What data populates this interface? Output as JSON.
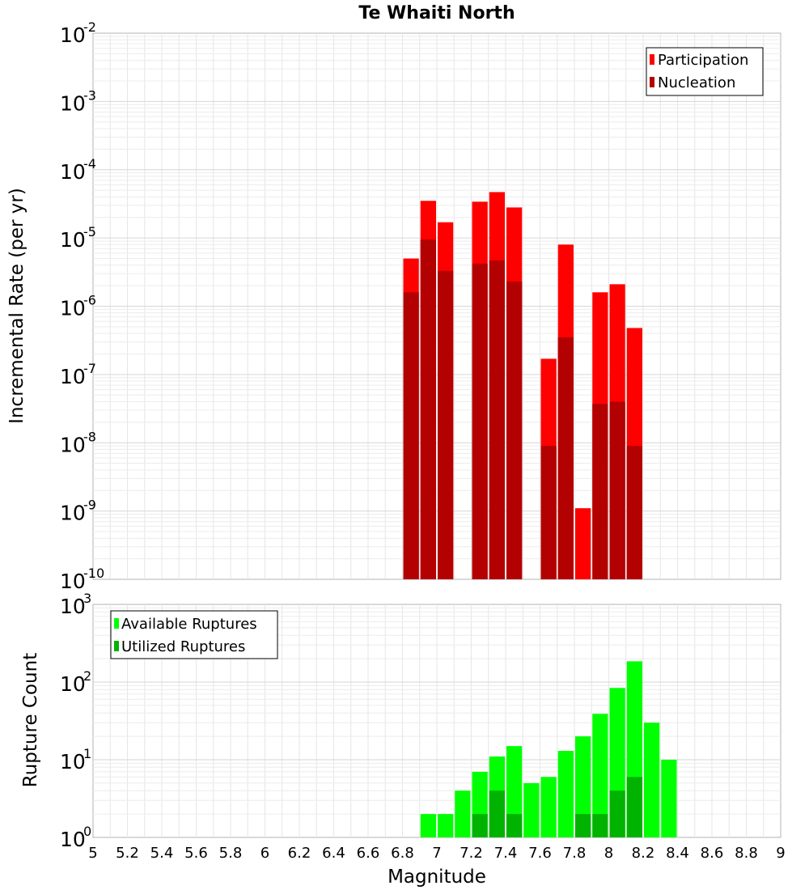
{
  "chart_data": [
    {
      "type": "bar",
      "title": "Te Whaiti North",
      "ylabel": "Incremental Rate (per yr)",
      "xlabel": "",
      "log_y": true,
      "grid": true,
      "legend_position": "top-right",
      "xlim": [
        5,
        9
      ],
      "ylim": [
        1e-10,
        0.01
      ],
      "bin_width": 0.1,
      "y_ticks": [
        {
          "base": "10",
          "exp": "-10"
        },
        {
          "base": "10",
          "exp": "-9"
        },
        {
          "base": "10",
          "exp": "-8"
        },
        {
          "base": "10",
          "exp": "-7"
        },
        {
          "base": "10",
          "exp": "-6"
        },
        {
          "base": "10",
          "exp": "-5"
        },
        {
          "base": "10",
          "exp": "-4"
        },
        {
          "base": "10",
          "exp": "-3"
        },
        {
          "base": "10",
          "exp": "-2"
        }
      ],
      "series": [
        {
          "name": "Participation",
          "color": "#ff0000",
          "x": [
            6.85,
            6.95,
            7.05,
            7.25,
            7.35,
            7.45,
            7.65,
            7.75,
            7.85,
            7.95,
            8.05,
            8.15
          ],
          "values": [
            5e-06,
            3.5e-05,
            1.7e-05,
            3.4e-05,
            4.7e-05,
            2.8e-05,
            1.7e-07,
            8e-06,
            1.1e-09,
            1.6e-06,
            2.1e-06,
            4.8e-07
          ]
        },
        {
          "name": "Nucleation",
          "color": "#b30000",
          "x": [
            6.85,
            6.95,
            7.05,
            7.25,
            7.35,
            7.45,
            7.65,
            7.75,
            7.95,
            8.05,
            8.15
          ],
          "values": [
            1.6e-06,
            9.5e-06,
            3.3e-06,
            4.2e-06,
            4.7e-06,
            2.3e-06,
            9e-09,
            3.5e-07,
            3.7e-08,
            4e-08,
            9e-09
          ]
        }
      ]
    },
    {
      "type": "bar",
      "title": "",
      "ylabel": "Rupture Count",
      "xlabel": "Magnitude",
      "log_y": true,
      "grid": true,
      "legend_position": "top-left",
      "xlim": [
        5,
        9
      ],
      "ylim": [
        0.8,
        1000
      ],
      "bin_width": 0.1,
      "x_ticks": [
        "5",
        "5.2",
        "5.4",
        "5.6",
        "5.8",
        "6",
        "6.2",
        "6.4",
        "6.6",
        "6.8",
        "7",
        "7.2",
        "7.4",
        "7.6",
        "7.8",
        "8",
        "8.2",
        "8.4",
        "8.6",
        "8.8",
        "9"
      ],
      "y_ticks": [
        {
          "base": "10",
          "exp": "0"
        },
        {
          "base": "10",
          "exp": "1"
        },
        {
          "base": "10",
          "exp": "2"
        },
        {
          "base": "10",
          "exp": "3"
        }
      ],
      "series": [
        {
          "name": "Available Ruptures",
          "color": "#00ff00",
          "x": [
            6.35,
            6.75,
            6.85,
            6.95,
            7.05,
            7.15,
            7.25,
            7.35,
            7.45,
            7.55,
            7.65,
            7.75,
            7.85,
            7.95,
            8.05,
            8.15,
            8.25,
            8.35
          ],
          "values": [
            1,
            1,
            1,
            2,
            2,
            4,
            7,
            11,
            15,
            5,
            6,
            13,
            20,
            39,
            84,
            185,
            30,
            10
          ]
        },
        {
          "name": "Utilized Ruptures",
          "color": "#00b300",
          "x": [
            6.85,
            6.95,
            7.05,
            7.25,
            7.35,
            7.45,
            7.65,
            7.75,
            7.85,
            7.95,
            8.05,
            8.15
          ],
          "values": [
            1,
            1,
            1,
            2,
            4,
            2,
            1,
            1,
            2,
            2,
            4,
            6
          ]
        }
      ]
    }
  ]
}
